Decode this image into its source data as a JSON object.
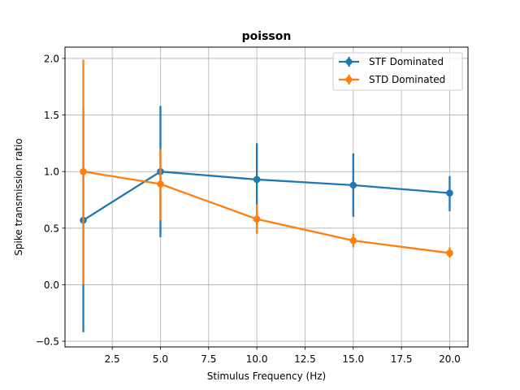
{
  "chart_data": {
    "type": "line",
    "title": "poisson",
    "xlabel": "Stimulus Frequency (Hz)",
    "ylabel": "Spike transmission ratio",
    "xlim": [
      0.05,
      20.95
    ],
    "ylim": [
      -0.55,
      2.1
    ],
    "xticks": [
      2.5,
      5.0,
      7.5,
      10.0,
      12.5,
      15.0,
      17.5,
      20.0
    ],
    "xtick_labels": [
      "2.5",
      "5.0",
      "7.5",
      "10.0",
      "12.5",
      "15.0",
      "17.5",
      "20.0"
    ],
    "yticks": [
      -0.5,
      0.0,
      0.5,
      1.0,
      1.5,
      2.0
    ],
    "ytick_labels": [
      "−0.5",
      "0.0",
      "0.5",
      "1.0",
      "1.5",
      "2.0"
    ],
    "grid": true,
    "legend_position": "top-right",
    "x": [
      1,
      5,
      10,
      15,
      20
    ],
    "series": [
      {
        "name": "STF Dominated",
        "color": "#1f77b4",
        "values": [
          0.57,
          1.0,
          0.93,
          0.88,
          0.81
        ],
        "err_low": [
          -0.42,
          0.42,
          0.61,
          0.6,
          0.65
        ],
        "err_high": [
          1.56,
          1.58,
          1.25,
          1.16,
          0.96
        ]
      },
      {
        "name": "STD Dominated",
        "color": "#ff7f0e",
        "values": [
          1.0,
          0.89,
          0.58,
          0.39,
          0.28
        ],
        "err_low": [
          0.0,
          0.57,
          0.45,
          0.33,
          0.24
        ],
        "err_high": [
          1.99,
          1.2,
          0.71,
          0.45,
          0.33
        ]
      }
    ]
  }
}
